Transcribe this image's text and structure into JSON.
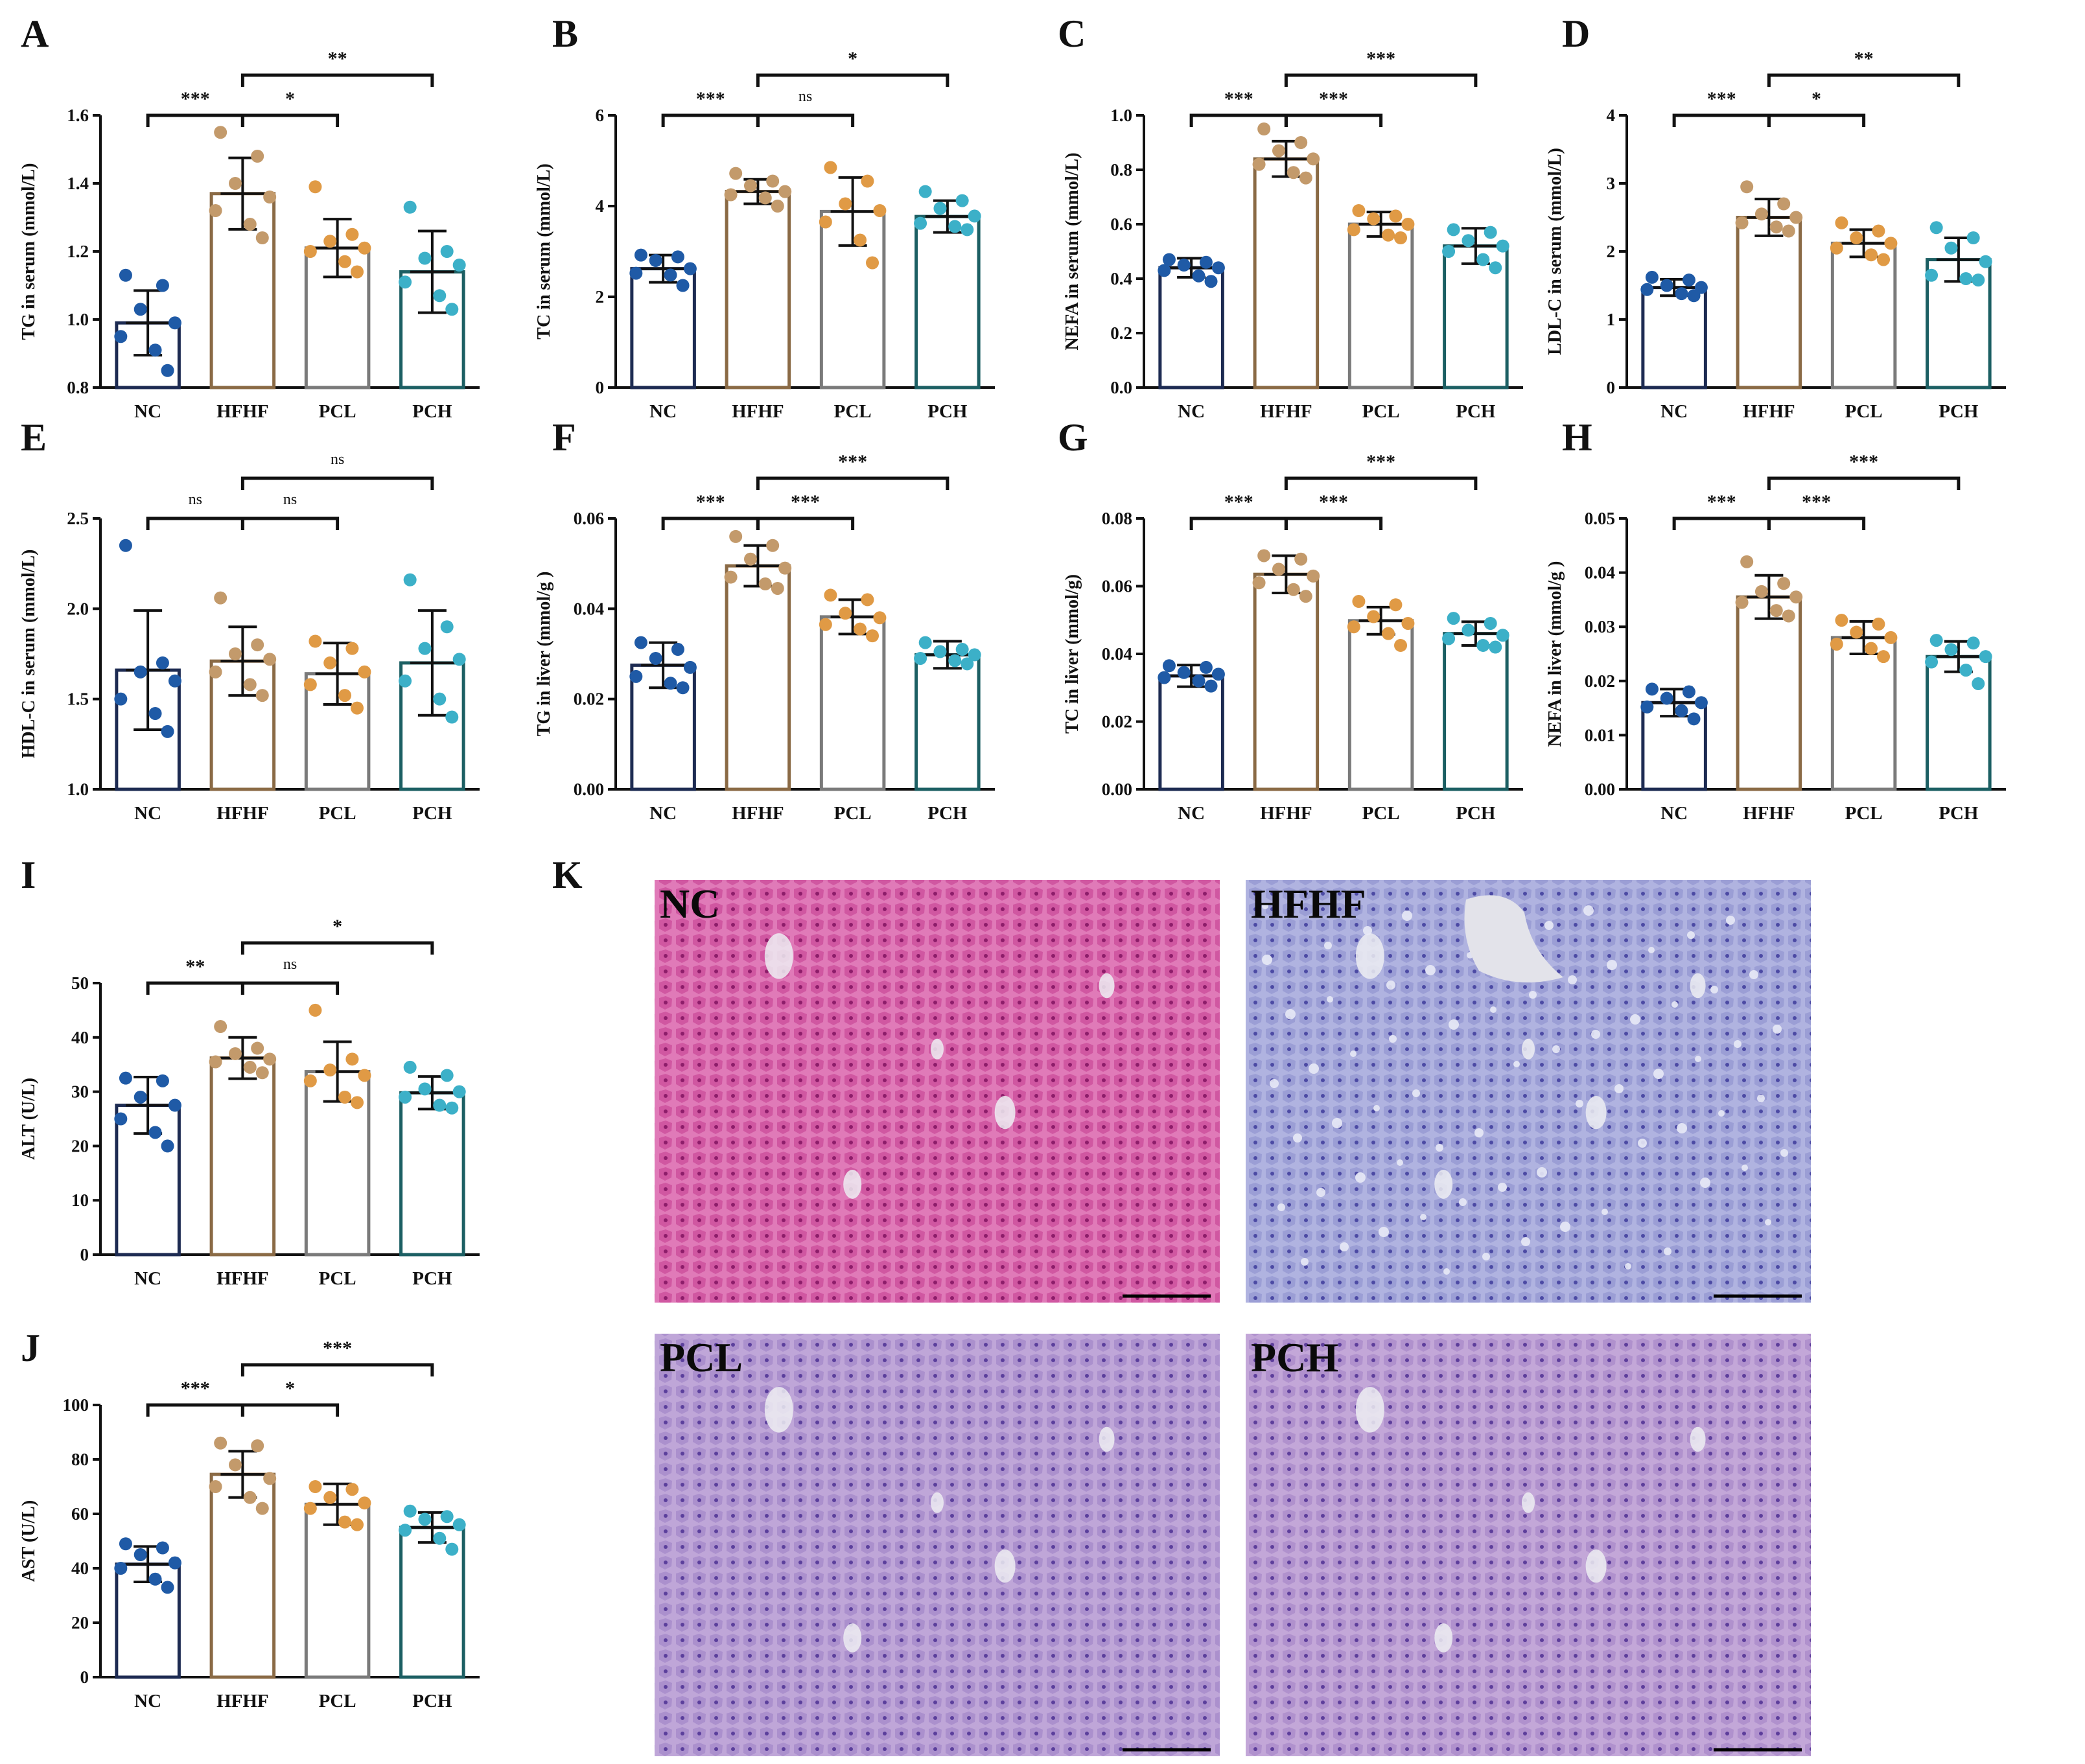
{
  "groups": [
    "NC",
    "HFHF",
    "PCL",
    "PCH"
  ],
  "colors": {
    "NC": {
      "edge": "#1d2b52",
      "dot": "#1f5aa6"
    },
    "HFHF": {
      "edge": "#8a6a45",
      "dot": "#c39a6b"
    },
    "PCL": {
      "edge": "#7a7a7a",
      "dot": "#e09a45"
    },
    "PCH": {
      "edge": "#1c5f63",
      "dot": "#3cb0c8"
    }
  },
  "chart_data": [
    {
      "id": "A",
      "type": "bar",
      "ylabel": "TG in serum (mmol/L)",
      "categories": [
        "NC",
        "HFHF",
        "PCL",
        "PCH"
      ],
      "ylim": [
        0.8,
        1.6
      ],
      "yticks": [
        "0.8",
        "1.0",
        "1.2",
        "1.4",
        "1.6"
      ],
      "values": [
        0.99,
        1.37,
        1.21,
        1.14
      ],
      "sd": [
        0.095,
        0.105,
        0.085,
        0.12
      ],
      "points": [
        [
          1.13,
          1.1,
          1.03,
          0.99,
          0.95,
          0.91,
          0.85
        ],
        [
          1.55,
          1.48,
          1.4,
          1.36,
          1.32,
          1.28,
          1.24
        ],
        [
          1.39,
          1.25,
          1.23,
          1.21,
          1.2,
          1.17,
          1.14
        ],
        [
          1.33,
          1.2,
          1.18,
          1.16,
          1.11,
          1.07,
          1.03
        ]
      ],
      "comparisons": [
        {
          "from": 0,
          "to": 1,
          "label": "***"
        },
        {
          "from": 1,
          "to": 2,
          "label": "*"
        },
        {
          "from": 1,
          "to": 3,
          "label": "**"
        }
      ]
    },
    {
      "id": "B",
      "type": "bar",
      "ylabel": "TC in serum (mmol/L)",
      "categories": [
        "NC",
        "HFHF",
        "PCL",
        "PCH"
      ],
      "ylim": [
        0,
        6
      ],
      "yticks": [
        "0",
        "2",
        "4",
        "6"
      ],
      "values": [
        2.62,
        4.32,
        3.88,
        3.77
      ],
      "sd": [
        0.3,
        0.27,
        0.75,
        0.35
      ],
      "points": [
        [
          2.92,
          2.88,
          2.8,
          2.62,
          2.52,
          2.48,
          2.25
        ],
        [
          4.72,
          4.55,
          4.45,
          4.32,
          4.25,
          4.18,
          4.0
        ],
        [
          4.85,
          4.55,
          4.05,
          3.9,
          3.65,
          3.25,
          2.75
        ],
        [
          4.32,
          4.12,
          3.95,
          3.78,
          3.62,
          3.55,
          3.48
        ]
      ],
      "comparisons": [
        {
          "from": 0,
          "to": 1,
          "label": "***"
        },
        {
          "from": 1,
          "to": 2,
          "label": "ns"
        },
        {
          "from": 1,
          "to": 3,
          "label": "*"
        }
      ]
    },
    {
      "id": "C",
      "type": "bar",
      "ylabel": "NEFA in serum (mmol/L)",
      "categories": [
        "NC",
        "HFHF",
        "PCL",
        "PCH"
      ],
      "ylim": [
        0,
        1.0
      ],
      "yticks": [
        "0.0",
        "0.2",
        "0.4",
        "0.6",
        "0.8",
        "1.0"
      ],
      "values": [
        0.44,
        0.84,
        0.6,
        0.52
      ],
      "sd": [
        0.035,
        0.065,
        0.045,
        0.065
      ],
      "points": [
        [
          0.47,
          0.46,
          0.45,
          0.44,
          0.43,
          0.41,
          0.39
        ],
        [
          0.95,
          0.9,
          0.87,
          0.84,
          0.82,
          0.79,
          0.77
        ],
        [
          0.65,
          0.63,
          0.62,
          0.6,
          0.58,
          0.56,
          0.55
        ],
        [
          0.58,
          0.57,
          0.54,
          0.52,
          0.5,
          0.47,
          0.44
        ]
      ],
      "comparisons": [
        {
          "from": 0,
          "to": 1,
          "label": "***"
        },
        {
          "from": 1,
          "to": 2,
          "label": "***"
        },
        {
          "from": 1,
          "to": 3,
          "label": "***"
        }
      ]
    },
    {
      "id": "D",
      "type": "bar",
      "ylabel": "LDL-C in serum (mmol/L)",
      "categories": [
        "NC",
        "HFHF",
        "PCL",
        "PCH"
      ],
      "ylim": [
        0,
        4
      ],
      "yticks": [
        "0",
        "1",
        "2",
        "3",
        "4"
      ],
      "values": [
        1.47,
        2.5,
        2.12,
        1.88
      ],
      "sd": [
        0.12,
        0.27,
        0.2,
        0.32
      ],
      "points": [
        [
          1.62,
          1.58,
          1.5,
          1.47,
          1.44,
          1.38,
          1.35
        ],
        [
          2.95,
          2.7,
          2.55,
          2.5,
          2.42,
          2.36,
          2.3
        ],
        [
          2.42,
          2.3,
          2.2,
          2.12,
          2.05,
          1.95,
          1.88
        ],
        [
          2.35,
          2.2,
          2.05,
          1.85,
          1.65,
          1.6,
          1.58
        ]
      ],
      "comparisons": [
        {
          "from": 0,
          "to": 1,
          "label": "***"
        },
        {
          "from": 1,
          "to": 2,
          "label": "*"
        },
        {
          "from": 1,
          "to": 3,
          "label": "**"
        }
      ]
    },
    {
      "id": "E",
      "type": "bar",
      "ylabel": "HDL-C in serum (mmol/L)",
      "categories": [
        "NC",
        "HFHF",
        "PCL",
        "PCH"
      ],
      "ylim": [
        1.0,
        2.5
      ],
      "yticks": [
        "1.0",
        "1.5",
        "2.0",
        "2.5"
      ],
      "values": [
        1.66,
        1.71,
        1.64,
        1.7
      ],
      "sd": [
        0.33,
        0.19,
        0.17,
        0.29
      ],
      "points": [
        [
          2.35,
          1.7,
          1.65,
          1.6,
          1.5,
          1.42,
          1.32
        ],
        [
          2.06,
          1.8,
          1.75,
          1.72,
          1.65,
          1.58,
          1.52
        ],
        [
          1.82,
          1.78,
          1.7,
          1.65,
          1.58,
          1.52,
          1.45
        ],
        [
          2.16,
          1.9,
          1.78,
          1.72,
          1.6,
          1.5,
          1.4
        ]
      ],
      "comparisons": [
        {
          "from": 0,
          "to": 1,
          "label": "ns"
        },
        {
          "from": 1,
          "to": 2,
          "label": "ns"
        },
        {
          "from": 1,
          "to": 3,
          "label": "ns"
        }
      ]
    },
    {
      "id": "F",
      "type": "bar",
      "ylabel": "TG in liver (mmol/g )",
      "categories": [
        "NC",
        "HFHF",
        "PCL",
        "PCH"
      ],
      "ylim": [
        0,
        0.06
      ],
      "yticks": [
        "0.00",
        "0.02",
        "0.04",
        "0.06"
      ],
      "values": [
        0.0275,
        0.0495,
        0.0382,
        0.0298
      ],
      "sd": [
        0.005,
        0.0045,
        0.0038,
        0.003
      ],
      "points": [
        [
          0.0325,
          0.031,
          0.029,
          0.027,
          0.025,
          0.0235,
          0.0225
        ],
        [
          0.056,
          0.054,
          0.051,
          0.049,
          0.047,
          0.0455,
          0.0445
        ],
        [
          0.043,
          0.042,
          0.039,
          0.038,
          0.0365,
          0.0355,
          0.034
        ],
        [
          0.0325,
          0.031,
          0.0305,
          0.0298,
          0.029,
          0.0285,
          0.0278
        ]
      ],
      "comparisons": [
        {
          "from": 0,
          "to": 1,
          "label": "***"
        },
        {
          "from": 1,
          "to": 2,
          "label": "***"
        },
        {
          "from": 1,
          "to": 3,
          "label": "***"
        }
      ]
    },
    {
      "id": "G",
      "type": "bar",
      "ylabel": "TC in liver (mmol/g)",
      "categories": [
        "NC",
        "HFHF",
        "PCL",
        "PCH"
      ],
      "ylim": [
        0,
        0.08
      ],
      "yticks": [
        "0.00",
        "0.02",
        "0.04",
        "0.06",
        "0.08"
      ],
      "values": [
        0.0335,
        0.0635,
        0.0498,
        0.046
      ],
      "sd": [
        0.0032,
        0.0055,
        0.004,
        0.0035
      ],
      "points": [
        [
          0.0365,
          0.036,
          0.0345,
          0.034,
          0.033,
          0.032,
          0.0305
        ],
        [
          0.069,
          0.068,
          0.065,
          0.063,
          0.061,
          0.059,
          0.057
        ],
        [
          0.0555,
          0.0545,
          0.051,
          0.049,
          0.048,
          0.046,
          0.0425
        ],
        [
          0.0505,
          0.049,
          0.047,
          0.0455,
          0.0445,
          0.0425,
          0.042
        ]
      ],
      "comparisons": [
        {
          "from": 0,
          "to": 1,
          "label": "***"
        },
        {
          "from": 1,
          "to": 2,
          "label": "***"
        },
        {
          "from": 1,
          "to": 3,
          "label": "***"
        }
      ]
    },
    {
      "id": "H",
      "type": "bar",
      "ylabel": "NEFA in liver (mmol/g )",
      "categories": [
        "NC",
        "HFHF",
        "PCL",
        "PCH"
      ],
      "ylim": [
        0,
        0.05
      ],
      "yticks": [
        "0.00",
        "0.01",
        "0.02",
        "0.03",
        "0.04",
        "0.05"
      ],
      "values": [
        0.016,
        0.0355,
        0.028,
        0.0245
      ],
      "sd": [
        0.0025,
        0.004,
        0.003,
        0.0028
      ],
      "points": [
        [
          0.0185,
          0.018,
          0.0168,
          0.016,
          0.0152,
          0.0145,
          0.013
        ],
        [
          0.042,
          0.038,
          0.0365,
          0.0355,
          0.0345,
          0.033,
          0.032
        ],
        [
          0.0312,
          0.0305,
          0.029,
          0.028,
          0.0268,
          0.026,
          0.0245
        ],
        [
          0.0275,
          0.027,
          0.0258,
          0.0245,
          0.0235,
          0.022,
          0.0195
        ]
      ],
      "comparisons": [
        {
          "from": 0,
          "to": 1,
          "label": "***"
        },
        {
          "from": 1,
          "to": 2,
          "label": "***"
        },
        {
          "from": 1,
          "to": 3,
          "label": "***"
        }
      ]
    },
    {
      "id": "I",
      "type": "bar",
      "ylabel": "ALT (U/L)",
      "categories": [
        "NC",
        "HFHF",
        "PCL",
        "PCH"
      ],
      "ylim": [
        0,
        50
      ],
      "yticks": [
        "0",
        "10",
        "20",
        "30",
        "40",
        "50"
      ],
      "values": [
        27.5,
        36.2,
        33.7,
        29.8
      ],
      "sd": [
        5.2,
        3.8,
        5.5,
        3.0
      ],
      "points": [
        [
          32.5,
          32,
          29,
          27.5,
          25,
          22.5,
          20
        ],
        [
          42,
          38,
          37,
          36,
          35.5,
          34.5,
          33.5
        ],
        [
          45,
          36,
          34,
          33,
          32,
          29,
          28
        ],
        [
          34.5,
          33,
          30.5,
          30,
          29,
          27.5,
          27
        ]
      ],
      "comparisons": [
        {
          "from": 0,
          "to": 1,
          "label": "**"
        },
        {
          "from": 1,
          "to": 2,
          "label": "ns"
        },
        {
          "from": 1,
          "to": 3,
          "label": "*"
        }
      ]
    },
    {
      "id": "J",
      "type": "bar",
      "ylabel": "AST (U/L)",
      "categories": [
        "NC",
        "HFHF",
        "PCL",
        "PCH"
      ],
      "ylim": [
        0,
        100
      ],
      "yticks": [
        "0",
        "20",
        "40",
        "60",
        "80",
        "100"
      ],
      "values": [
        41.5,
        74.5,
        63.5,
        55
      ],
      "sd": [
        6.5,
        8.5,
        7.5,
        5.5
      ],
      "points": [
        [
          49,
          47.5,
          45,
          42,
          40,
          36,
          33
        ],
        [
          86,
          85,
          78,
          73,
          70,
          66,
          62
        ],
        [
          70,
          69,
          66,
          64,
          62,
          57,
          56
        ],
        [
          61,
          59,
          58,
          56,
          54,
          51,
          47
        ]
      ],
      "comparisons": [
        {
          "from": 0,
          "to": 1,
          "label": "***"
        },
        {
          "from": 1,
          "to": 2,
          "label": "*"
        },
        {
          "from": 1,
          "to": 3,
          "label": "***"
        }
      ]
    }
  ],
  "histology": {
    "panel_letter": "K",
    "images": [
      {
        "label": "NC",
        "stain_bg": "#e07ab8",
        "stain_cell": "#c23a8e",
        "stain_nuc": "#8d1d6a"
      },
      {
        "label": "HFHF",
        "stain_bg": "#b0b3e0",
        "stain_cell": "#8a8ccc",
        "stain_nuc": "#4c4aa4"
      },
      {
        "label": "PCL",
        "stain_bg": "#bfa6d8",
        "stain_cell": "#9b7dc4",
        "stain_nuc": "#5b3f9c"
      },
      {
        "label": "PCH",
        "stain_bg": "#c3a7d8",
        "stain_cell": "#a07fc4",
        "stain_nuc": "#5d3e9b"
      }
    ]
  }
}
